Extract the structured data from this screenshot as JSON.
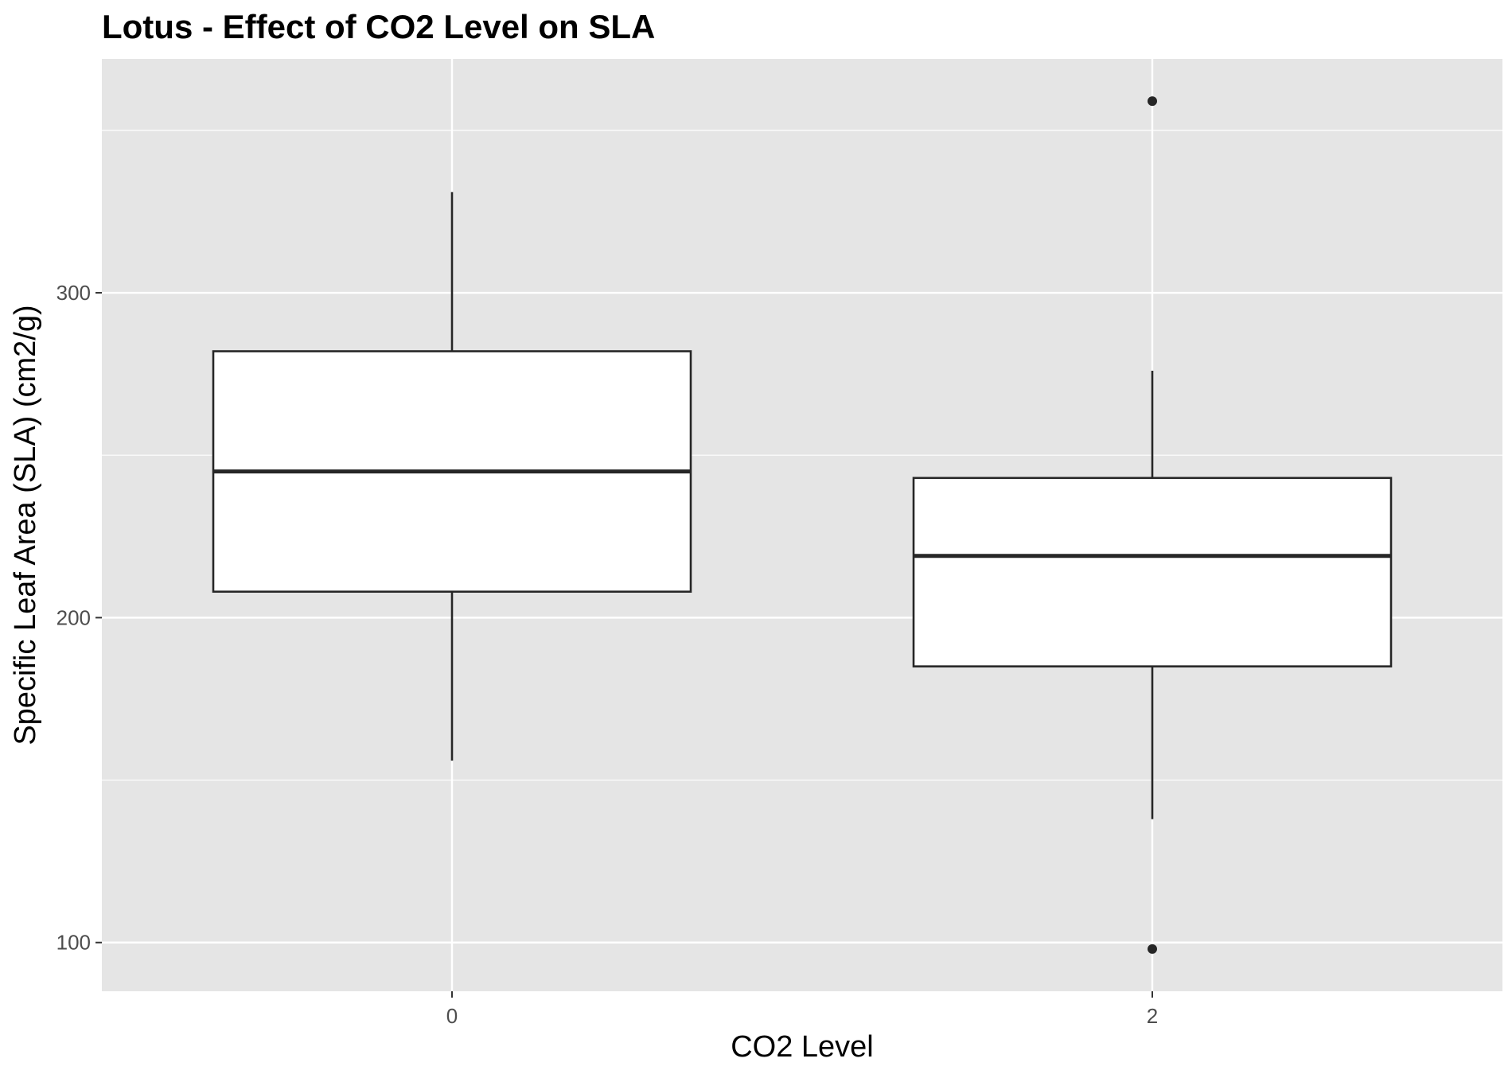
{
  "chart_data": {
    "type": "box",
    "title": "Lotus - Effect of CO2 Level on SLA",
    "xlabel": "CO2 Level",
    "ylabel": "Specific Leaf Area (SLA) (cm2/g)",
    "categories": [
      "0",
      "2"
    ],
    "ylim": [
      85,
      372
    ],
    "y_ticks": [
      100,
      200,
      300
    ],
    "y_minor_ticks": [
      150,
      250,
      350
    ],
    "grid": true,
    "boxes": [
      {
        "category": "0",
        "whisker_low": 156,
        "q1": 208,
        "median": 245,
        "q3": 282,
        "whisker_high": 331,
        "outliers": []
      },
      {
        "category": "2",
        "whisker_low": 138,
        "q1": 185,
        "median": 219,
        "q3": 243,
        "whisker_high": 276,
        "outliers": [
          98,
          359
        ]
      }
    ],
    "colors": {
      "panel": "#e5e5e5",
      "grid": "#ffffff",
      "box_fill": "#ffffff",
      "box_stroke": "#262626",
      "tick_text": "#4d4d4d"
    }
  }
}
